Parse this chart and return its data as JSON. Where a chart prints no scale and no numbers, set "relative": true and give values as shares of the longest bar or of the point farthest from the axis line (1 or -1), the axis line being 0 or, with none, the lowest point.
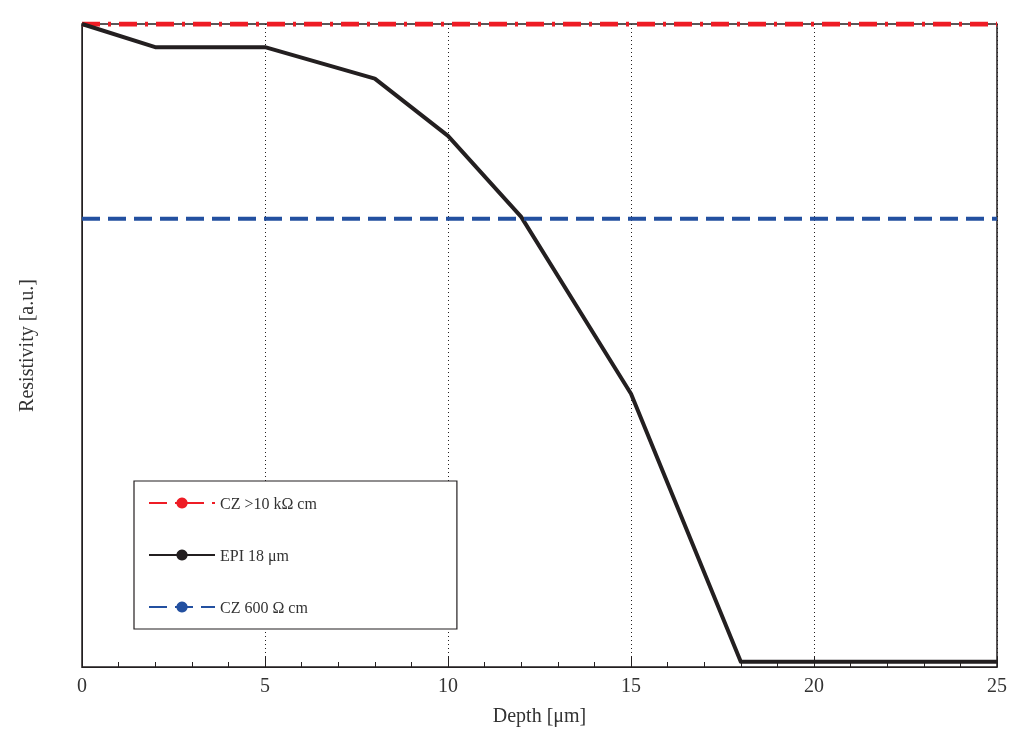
{
  "chart_data": {
    "type": "line",
    "relative": true,
    "xlabel": "Depth [μm]",
    "ylabel": "Resistivity [a.u.]",
    "xlim": [
      0,
      25
    ],
    "xticks": [
      0,
      5,
      10,
      15,
      20,
      25
    ],
    "grid": "x",
    "legend": "bottom left",
    "marker": "none",
    "series": [
      {
        "name": "CZ >10 kΩ cm",
        "color": "#ee1c25",
        "line_style": "dashdot",
        "x": [
          0,
          25
        ],
        "values": [
          1,
          1
        ]
      },
      {
        "name": "EPI 18 μm",
        "color": "#231f20",
        "line_style": "solid",
        "x": [
          0,
          2,
          5,
          8,
          10,
          12,
          15,
          18,
          25
        ],
        "values": [
          1,
          0.964,
          0.964,
          0.915,
          0.826,
          0.7,
          0.425,
          0.008,
          0.008
        ]
      },
      {
        "name": "CZ 600 Ω cm",
        "color": "#2350a0",
        "line_style": "dashed",
        "x": [
          0,
          25
        ],
        "values": [
          0.697,
          0.697
        ]
      }
    ]
  }
}
